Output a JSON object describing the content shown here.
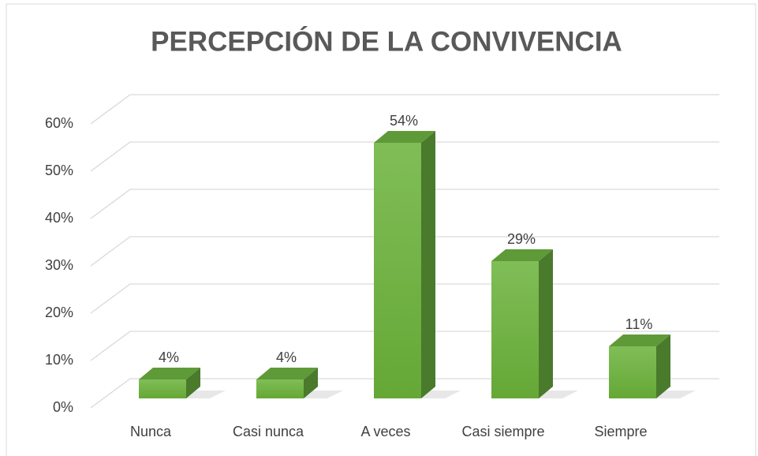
{
  "chart_data": {
    "type": "bar3d",
    "title": "PERCEPCIÓN DE LA CONVIVENCIA",
    "categories": [
      "Nunca",
      "Casi nunca",
      "A veces",
      "Casi siempre",
      "Siempre"
    ],
    "values": [
      4,
      4,
      54,
      29,
      11
    ],
    "value_labels": [
      "4%",
      "4%",
      "54%",
      "29%",
      "11%"
    ],
    "color": "#70b244",
    "ylim": [
      0,
      60
    ],
    "yticks": [
      {
        "value": 0,
        "label": "0%"
      },
      {
        "value": 10,
        "label": "10%"
      },
      {
        "value": 20,
        "label": "20%"
      },
      {
        "value": 30,
        "label": "30%"
      },
      {
        "value": 40,
        "label": "40%"
      },
      {
        "value": 50,
        "label": "50%"
      },
      {
        "value": 60,
        "label": "60%"
      }
    ],
    "grid": true
  }
}
